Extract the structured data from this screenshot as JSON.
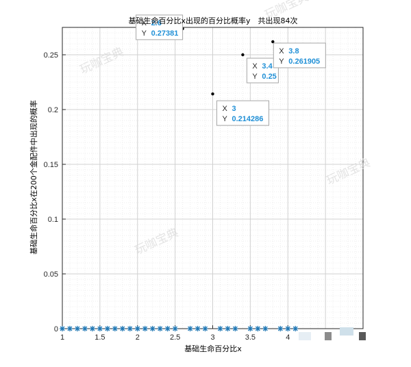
{
  "chart_data": {
    "type": "scatter",
    "title": "基础生命百分比x出现的百分比概率y　共出现84次",
    "xlabel": "基础生命百分比x",
    "ylabel": "基础生命百分比x在200个金配件中出现的概率",
    "xlim": [
      1,
      5
    ],
    "ylim": [
      0,
      0.275
    ],
    "xticks": [
      "1",
      "1.5",
      "2",
      "2.5",
      "3",
      "3.5",
      "4"
    ],
    "xtick_values": [
      1,
      1.5,
      2,
      2.5,
      3,
      3.5,
      4
    ],
    "yticks": [
      "0",
      "0.05",
      "0.1",
      "0.15",
      "0.2",
      "0.25"
    ],
    "ytick_values": [
      0,
      0.05,
      0.1,
      0.15,
      0.2,
      0.25
    ],
    "grid": "on (major and minor)",
    "marker_color": "#1f77b4",
    "zero_markers_x": [
      1,
      1.1,
      1.2,
      1.3,
      1.4,
      1.5,
      1.6,
      1.7,
      1.8,
      1.9,
      2.0,
      2.1,
      2.2,
      2.3,
      2.4,
      2.5,
      2.7,
      2.8,
      2.9,
      3.1,
      3.2,
      3.3,
      3.5,
      3.6,
      3.7,
      3.9,
      4.0,
      4.1
    ],
    "points": [
      {
        "x": "2.6",
        "y": "0.27381",
        "xv": 2.6,
        "yv": 0.27381
      },
      {
        "x": "3",
        "y": "0.214286",
        "xv": 3.0,
        "yv": 0.214286
      },
      {
        "x": "3.4",
        "y": "0.25",
        "xv": 3.4,
        "yv": 0.25
      },
      {
        "x": "3.8",
        "y": "0.261905",
        "xv": 3.8,
        "yv": 0.261905
      }
    ],
    "tooltip_x_key": "X",
    "tooltip_y_key": "Y"
  },
  "watermark": "玩咖宝典"
}
